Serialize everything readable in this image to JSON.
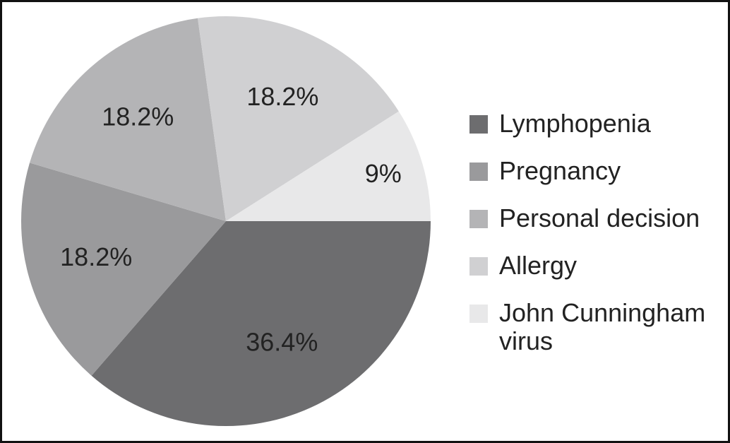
{
  "chart_data": {
    "type": "pie",
    "categories": [
      "Lymphopenia",
      "Pregnancy",
      "Personal decision",
      "Allergy",
      "John Cunningham virus"
    ],
    "values": [
      36.4,
      18.2,
      18.2,
      18.2,
      9
    ],
    "value_labels": [
      "36.4%",
      "18.2%",
      "18.2%",
      "18.2%",
      "9%"
    ],
    "colors": [
      "#6d6d6f",
      "#9a9a9c",
      "#b4b4b6",
      "#d0d0d2",
      "#e8e8e9"
    ],
    "legend": "right"
  }
}
